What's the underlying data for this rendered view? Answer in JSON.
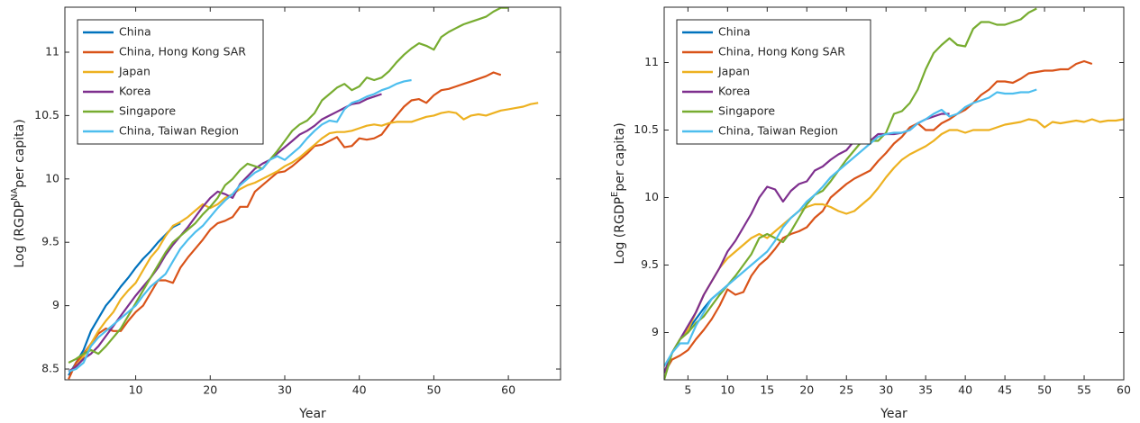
{
  "chart_data": [
    {
      "type": "line",
      "xlabel": "Year",
      "ylabel": {
        "text": "Log (RGDP",
        "sup": "NA",
        "rest": "per capita)"
      },
      "xlim": [
        0.5,
        67
      ],
      "ylim": [
        8.415,
        11.355
      ],
      "xticks": [
        10,
        20,
        30,
        40,
        50,
        60
      ],
      "yticks": [
        8.5,
        9,
        9.5,
        10,
        10.5,
        11
      ],
      "legend": "northwest",
      "x": [
        1,
        2,
        3,
        4,
        5,
        6,
        7,
        8,
        9,
        10,
        11,
        12,
        13,
        14,
        15,
        16,
        17,
        18,
        19,
        20,
        21,
        22,
        23,
        24,
        25,
        26,
        27,
        28,
        29,
        30,
        31,
        32,
        33,
        34,
        35,
        36,
        37,
        38,
        39,
        40,
        41,
        42,
        43,
        44,
        45,
        46,
        47,
        48,
        49,
        50,
        51,
        52,
        53,
        54,
        55,
        56,
        57,
        58,
        59,
        60,
        61,
        62,
        63,
        64
      ],
      "series": [
        {
          "name": "China",
          "color": "#0072bd",
          "values": [
            8.45,
            8.55,
            8.65,
            8.8,
            8.9,
            9.0,
            9.07,
            9.15,
            9.22,
            9.3,
            9.37,
            9.43,
            9.5,
            9.56,
            9.62,
            9.65,
            null,
            null,
            null,
            null,
            null,
            null,
            null,
            null,
            null,
            null,
            null,
            null,
            null,
            null,
            null,
            null,
            null,
            null,
            null,
            null,
            null,
            null,
            null,
            null,
            null,
            null,
            null,
            null,
            null,
            null,
            null,
            null,
            null,
            null,
            null,
            null,
            null,
            null,
            null,
            null,
            null,
            null,
            null,
            null,
            null,
            null,
            null,
            null
          ]
        },
        {
          "name": "China, Hong Kong SAR",
          "color": "#d95319",
          "values": [
            8.42,
            8.55,
            8.62,
            8.7,
            8.78,
            8.82,
            8.8,
            8.8,
            8.88,
            8.95,
            9.0,
            9.1,
            9.2,
            9.2,
            9.18,
            9.3,
            9.38,
            9.45,
            9.52,
            9.6,
            9.65,
            9.67,
            9.7,
            9.78,
            9.78,
            9.9,
            9.95,
            10.0,
            10.05,
            10.06,
            10.1,
            10.15,
            10.2,
            10.26,
            10.27,
            10.3,
            10.33,
            10.25,
            10.26,
            10.32,
            10.31,
            10.32,
            10.35,
            10.43,
            10.5,
            10.57,
            10.62,
            10.63,
            10.6,
            10.66,
            10.7,
            10.71,
            10.73,
            10.75,
            10.77,
            10.79,
            10.81,
            10.84,
            10.82,
            null,
            null,
            null,
            null,
            null
          ]
        },
        {
          "name": "Japan",
          "color": "#edb120",
          "values": [
            8.48,
            8.52,
            8.6,
            8.7,
            8.8,
            8.88,
            8.95,
            9.05,
            9.12,
            9.18,
            9.28,
            9.38,
            9.45,
            9.55,
            9.63,
            9.66,
            9.7,
            9.75,
            9.8,
            9.77,
            9.8,
            9.85,
            9.88,
            9.92,
            9.95,
            9.97,
            10.0,
            10.03,
            10.06,
            10.1,
            10.13,
            10.17,
            10.22,
            10.27,
            10.32,
            10.36,
            10.37,
            10.37,
            10.38,
            10.4,
            10.42,
            10.43,
            10.42,
            10.44,
            10.45,
            10.45,
            10.45,
            10.47,
            10.49,
            10.5,
            10.52,
            10.53,
            10.52,
            10.47,
            10.5,
            10.51,
            10.5,
            10.52,
            10.54,
            10.55,
            10.56,
            10.57,
            10.59,
            10.6
          ]
        },
        {
          "name": "Korea",
          "color": "#7e2f8e",
          "values": [
            8.48,
            8.52,
            8.58,
            8.62,
            8.68,
            8.76,
            8.84,
            8.92,
            9.0,
            9.08,
            9.15,
            9.22,
            9.3,
            9.4,
            9.48,
            9.55,
            9.62,
            9.7,
            9.78,
            9.85,
            9.9,
            9.88,
            9.85,
            9.96,
            10.02,
            10.08,
            10.12,
            10.15,
            10.2,
            10.25,
            10.3,
            10.35,
            10.38,
            10.42,
            10.47,
            10.5,
            10.53,
            10.56,
            10.59,
            10.6,
            10.63,
            10.65,
            10.67,
            null,
            null,
            null,
            null,
            null,
            null,
            null,
            null,
            null,
            null,
            null,
            null,
            null,
            null,
            null,
            null,
            null,
            null,
            null,
            null,
            null
          ]
        },
        {
          "name": "Singapore",
          "color": "#77ac30",
          "values": [
            8.55,
            8.58,
            8.62,
            8.65,
            8.62,
            8.68,
            8.75,
            8.82,
            8.92,
            9.02,
            9.12,
            9.22,
            9.32,
            9.42,
            9.5,
            9.55,
            9.6,
            9.65,
            9.72,
            9.78,
            9.85,
            9.95,
            10.0,
            10.07,
            10.12,
            10.1,
            10.08,
            10.15,
            10.22,
            10.3,
            10.38,
            10.43,
            10.46,
            10.52,
            10.62,
            10.67,
            10.72,
            10.75,
            10.7,
            10.73,
            10.8,
            10.78,
            10.8,
            10.85,
            10.92,
            10.98,
            11.03,
            11.07,
            11.05,
            11.02,
            11.12,
            11.16,
            11.19,
            11.22,
            11.24,
            11.26,
            11.28,
            11.32,
            11.35,
            11.35,
            null,
            null,
            null,
            null
          ]
        },
        {
          "name": "China, Taiwan Region",
          "color": "#4dbeee",
          "values": [
            8.48,
            8.5,
            8.55,
            8.68,
            8.75,
            8.8,
            8.85,
            8.9,
            8.95,
            9.0,
            9.08,
            9.15,
            9.2,
            9.25,
            9.35,
            9.45,
            9.52,
            9.58,
            9.63,
            9.7,
            9.77,
            9.83,
            9.88,
            9.95,
            10.0,
            10.05,
            10.08,
            10.15,
            10.18,
            10.15,
            10.2,
            10.25,
            10.32,
            10.38,
            10.43,
            10.46,
            10.45,
            10.55,
            10.6,
            10.62,
            10.65,
            10.67,
            10.7,
            10.72,
            10.75,
            10.77,
            10.78,
            null,
            null,
            null,
            null,
            null,
            null,
            null,
            null,
            null,
            null,
            null,
            null,
            null,
            null,
            null,
            null,
            null
          ]
        }
      ]
    },
    {
      "type": "line",
      "xlabel": "Year",
      "ylabel": {
        "text": "Log (RGDP",
        "sup": "E",
        "rest": "per capita)"
      },
      "xlim": [
        2,
        60
      ],
      "ylim": [
        8.65,
        11.41
      ],
      "xticks": [
        5,
        10,
        15,
        20,
        25,
        30,
        35,
        40,
        45,
        50,
        55,
        60
      ],
      "yticks": [
        9,
        9.5,
        10,
        10.5,
        11
      ],
      "legend": "northwest",
      "x": [
        2,
        3,
        4,
        5,
        6,
        7,
        8,
        9,
        10,
        11,
        12,
        13,
        14,
        15,
        16,
        17,
        18,
        19,
        20,
        21,
        22,
        23,
        24,
        25,
        26,
        27,
        28,
        29,
        30,
        31,
        32,
        33,
        34,
        35,
        36,
        37,
        38,
        39,
        40,
        41,
        42,
        43,
        44,
        45,
        46,
        47,
        48,
        49,
        50,
        51,
        52,
        53,
        54,
        55,
        56,
        57,
        58,
        59,
        60
      ],
      "series": [
        {
          "name": "China",
          "color": "#0072bd",
          "values": [
            8.7,
            8.85,
            8.95,
            9.02,
            9.1,
            9.18,
            9.25,
            9.3,
            9.35,
            null,
            null,
            null,
            null,
            null,
            null,
            null,
            null,
            null,
            null,
            null,
            null,
            null,
            null,
            null,
            null,
            null,
            null,
            null,
            null,
            null,
            null,
            null,
            null,
            null,
            null,
            null,
            null,
            null,
            null,
            null,
            null,
            null,
            null,
            null,
            null,
            null,
            null,
            null,
            null,
            null,
            null,
            null,
            null,
            null,
            null,
            null,
            null,
            null,
            null
          ]
        },
        {
          "name": "China, Hong Kong SAR",
          "color": "#d95319",
          "values": [
            8.7,
            8.8,
            8.83,
            8.87,
            8.95,
            9.02,
            9.1,
            9.2,
            9.32,
            9.28,
            9.3,
            9.42,
            9.5,
            9.55,
            9.62,
            9.7,
            9.73,
            9.75,
            9.78,
            9.85,
            9.9,
            10.0,
            10.05,
            10.1,
            10.14,
            10.17,
            10.2,
            10.27,
            10.33,
            10.4,
            10.45,
            10.52,
            10.55,
            10.5,
            10.5,
            10.55,
            10.58,
            10.62,
            10.65,
            10.7,
            10.76,
            10.8,
            10.86,
            10.86,
            10.85,
            10.88,
            10.92,
            10.93,
            10.94,
            10.94,
            10.95,
            10.95,
            10.99,
            11.01,
            10.99,
            null,
            null,
            null,
            null
          ]
        },
        {
          "name": "Japan",
          "color": "#edb120",
          "values": [
            8.7,
            8.85,
            8.95,
            9.02,
            9.15,
            9.28,
            9.38,
            9.48,
            9.55,
            9.6,
            9.65,
            9.7,
            9.73,
            9.7,
            9.75,
            9.8,
            9.85,
            9.9,
            9.93,
            9.95,
            9.95,
            9.93,
            9.9,
            9.88,
            9.9,
            9.95,
            10.0,
            10.07,
            10.15,
            10.22,
            10.28,
            10.32,
            10.35,
            10.38,
            10.42,
            10.47,
            10.5,
            10.5,
            10.48,
            10.5,
            10.5,
            10.5,
            10.52,
            10.54,
            10.55,
            10.56,
            10.58,
            10.57,
            10.52,
            10.56,
            10.55,
            10.56,
            10.57,
            10.56,
            10.58,
            10.56,
            10.57,
            10.57,
            10.58
          ]
        },
        {
          "name": "Korea",
          "color": "#7e2f8e",
          "values": [
            8.7,
            8.85,
            8.95,
            9.05,
            9.15,
            9.28,
            9.38,
            9.48,
            9.6,
            9.68,
            9.78,
            9.88,
            10.0,
            10.08,
            10.06,
            9.97,
            10.05,
            10.1,
            10.12,
            10.2,
            10.23,
            10.28,
            10.32,
            10.35,
            10.42,
            10.42,
            10.42,
            10.47,
            10.47,
            10.47,
            10.48,
            10.5,
            10.55,
            10.58,
            10.6,
            10.62,
            10.62,
            null,
            null,
            null,
            null,
            null,
            null,
            null,
            null,
            null,
            null,
            null,
            null,
            null,
            null,
            null,
            null,
            null,
            null,
            null,
            null,
            null,
            null
          ]
        },
        {
          "name": "Singapore",
          "color": "#77ac30",
          "values": [
            8.65,
            8.85,
            8.95,
            9.0,
            9.07,
            9.12,
            9.2,
            9.28,
            9.35,
            9.42,
            9.5,
            9.58,
            9.7,
            9.73,
            9.7,
            9.67,
            9.75,
            9.85,
            9.95,
            10.02,
            10.05,
            10.12,
            10.2,
            10.28,
            10.35,
            10.42,
            10.42,
            10.42,
            10.48,
            10.62,
            10.64,
            10.7,
            10.8,
            10.95,
            11.07,
            11.13,
            11.18,
            11.13,
            11.12,
            11.25,
            11.3,
            11.3,
            11.28,
            11.28,
            11.3,
            11.32,
            11.37,
            11.4,
            null,
            null,
            null,
            null,
            null,
            null,
            null,
            null,
            null,
            null,
            null
          ]
        },
        {
          "name": "China, Taiwan Region",
          "color": "#4dbeee",
          "values": [
            8.75,
            8.85,
            8.92,
            8.92,
            9.05,
            9.15,
            9.25,
            9.3,
            9.35,
            9.4,
            9.45,
            9.5,
            9.55,
            9.6,
            9.68,
            9.78,
            9.85,
            9.9,
            9.97,
            10.02,
            10.08,
            10.15,
            10.2,
            10.25,
            10.3,
            10.35,
            10.4,
            10.45,
            10.47,
            10.48,
            10.48,
            10.5,
            10.55,
            10.58,
            10.62,
            10.65,
            10.6,
            10.62,
            10.67,
            10.7,
            10.72,
            10.74,
            10.78,
            10.77,
            10.77,
            10.78,
            10.78,
            10.8,
            null,
            null,
            null,
            null,
            null,
            null,
            null,
            null,
            null,
            null,
            null
          ]
        }
      ]
    }
  ]
}
